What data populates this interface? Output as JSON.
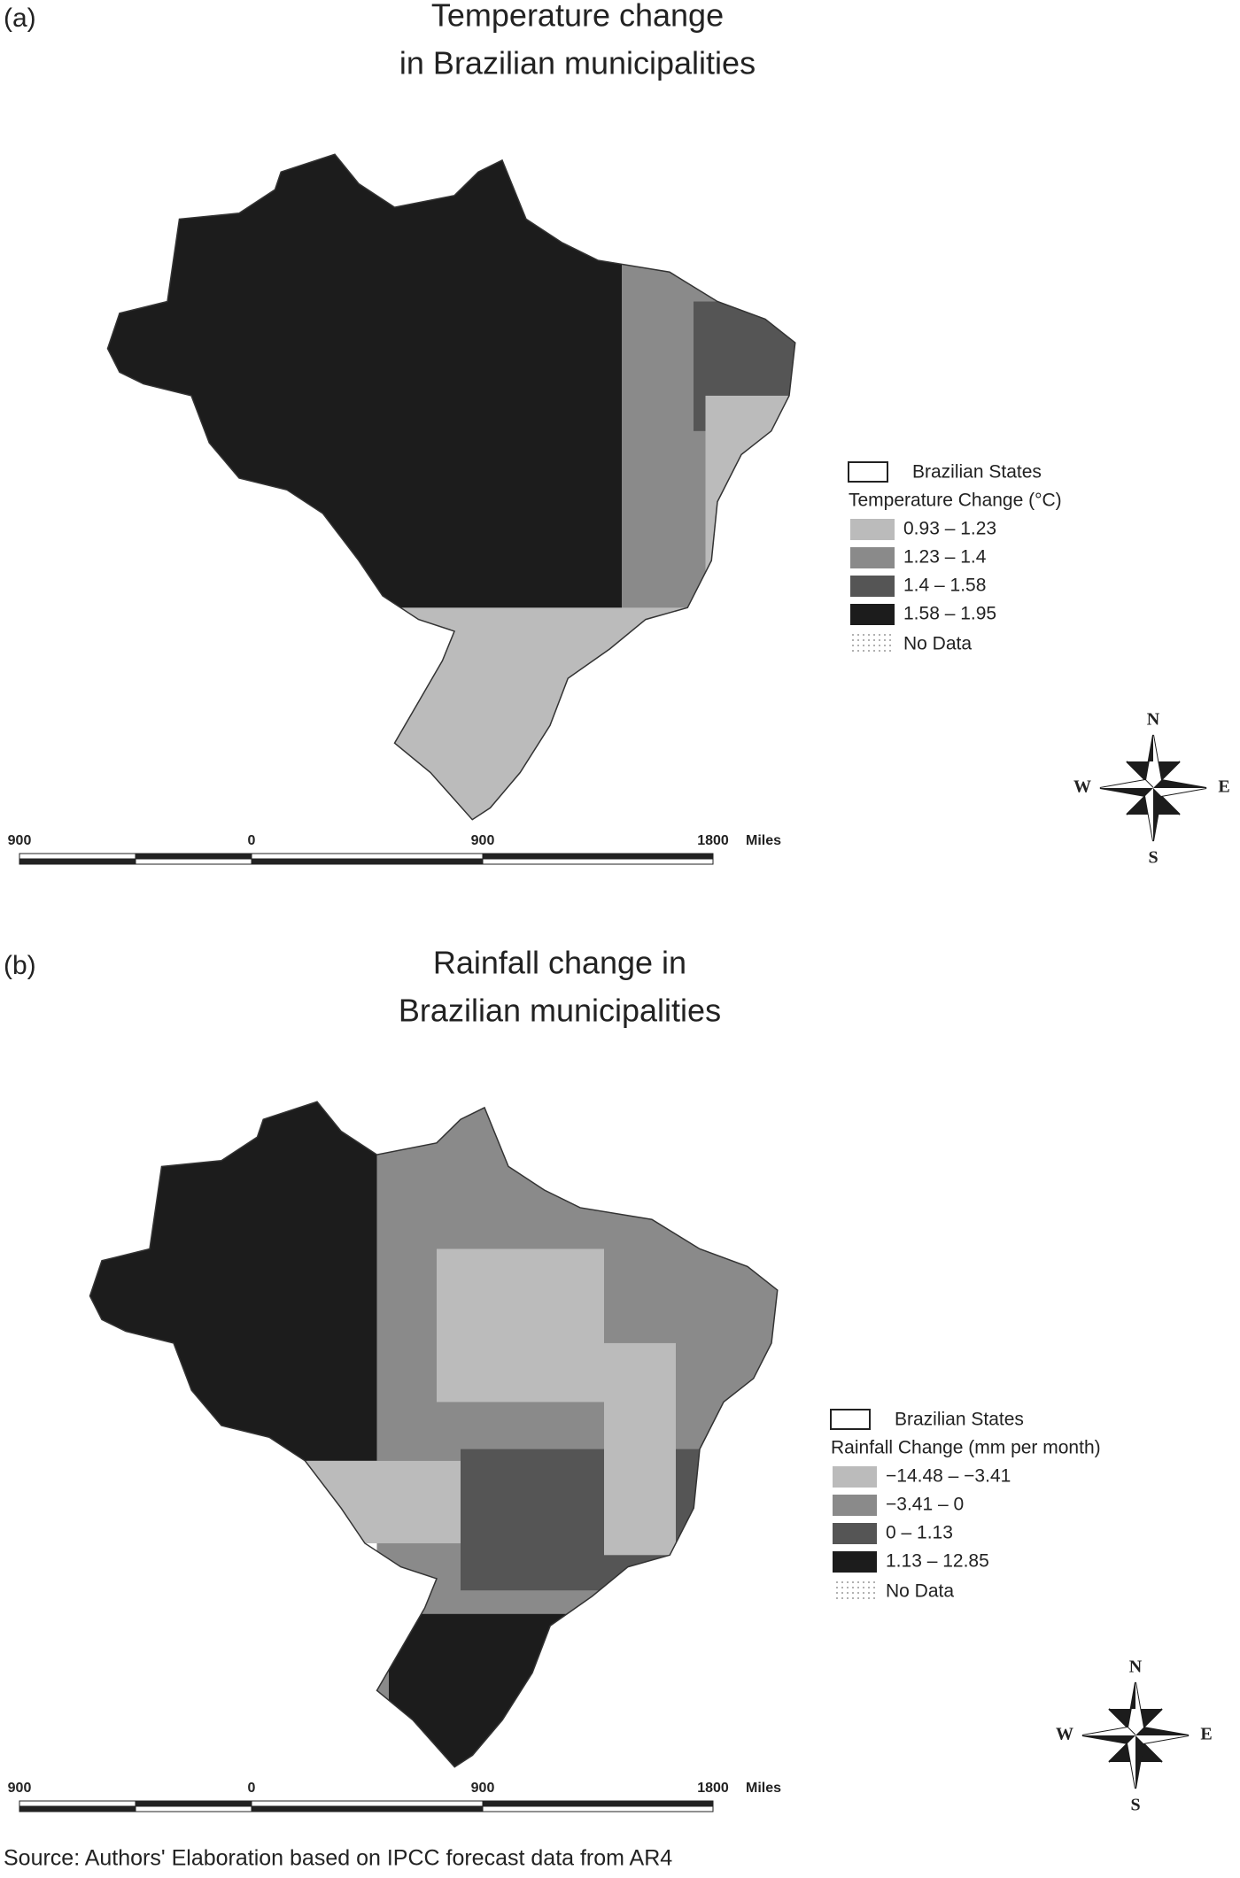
{
  "panels": [
    {
      "label": "(a)",
      "title": [
        "Temperature change",
        "in Brazilian municipalities"
      ],
      "legend": {
        "boundary": "Brazilian States",
        "title": "Temperature Change (°C)",
        "classes": [
          "0.93 – 1.23",
          "1.23 – 1.4",
          "1.4 – 1.58",
          "1.58 – 1.95"
        ],
        "no_data": "No Data"
      },
      "scale": [
        "900",
        "0",
        "900",
        "1800",
        "Miles"
      ],
      "compass": [
        "N",
        "E",
        "S",
        "W"
      ]
    },
    {
      "label": "(b)",
      "title": [
        "Rainfall change in",
        "Brazilian municipalities"
      ],
      "legend": {
        "boundary": "Brazilian States",
        "title": "Rainfall Change  (mm per month)",
        "classes": [
          "−14.48 – −3.41",
          "−3.41 – 0",
          "0 – 1.13",
          "1.13 – 12.85"
        ],
        "no_data": "No Data"
      },
      "scale": [
        "900",
        "0",
        "900",
        "1800",
        "Miles"
      ],
      "compass": [
        "N",
        "E",
        "S",
        "W"
      ]
    }
  ],
  "source": "Source: Authors' Elaboration based on IPCC forecast data from AR4"
}
